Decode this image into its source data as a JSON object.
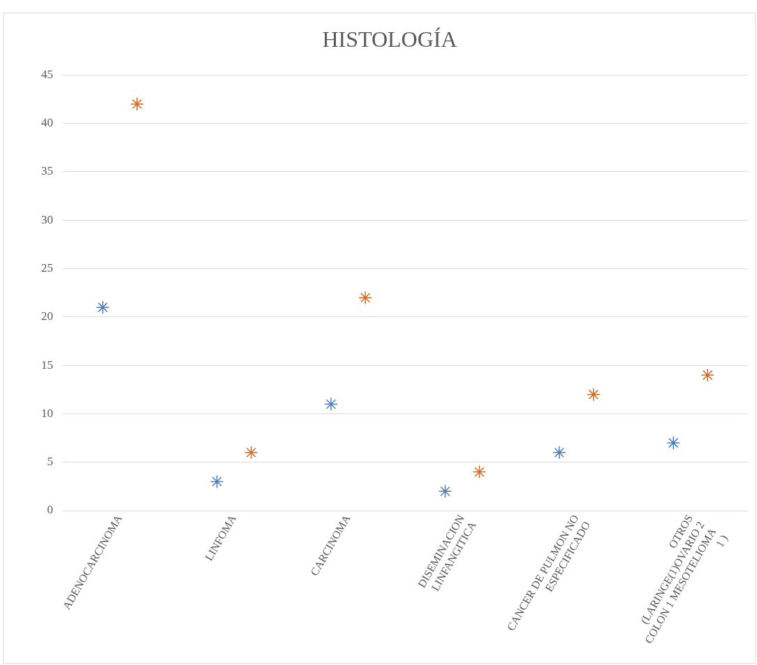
{
  "chart_data": {
    "type": "scatter",
    "title": "HISTOLOGÍA",
    "categories": [
      "ADENOCARCINOMA",
      "LINFOMA",
      "CARCINOMA",
      "DISEMINACION LINFANGITICA",
      "CANCER DE PULMON NO ESPECIFICADO",
      "OTROS (LARINGE(1)OVARIO 2 COLON 1 MESOTELIOMA 1 )"
    ],
    "series": [
      {
        "color": "#4a7ebb",
        "values": [
          21,
          3,
          11,
          2,
          6,
          7
        ]
      },
      {
        "color": "#d2691e",
        "values": [
          42,
          6,
          22,
          4,
          12,
          14
        ]
      }
    ],
    "ylim": [
      0,
      45
    ],
    "yticks": [
      0,
      5,
      10,
      15,
      20,
      25,
      30,
      35,
      40,
      45
    ],
    "grid": "y",
    "legend": false,
    "marker": "cross"
  }
}
